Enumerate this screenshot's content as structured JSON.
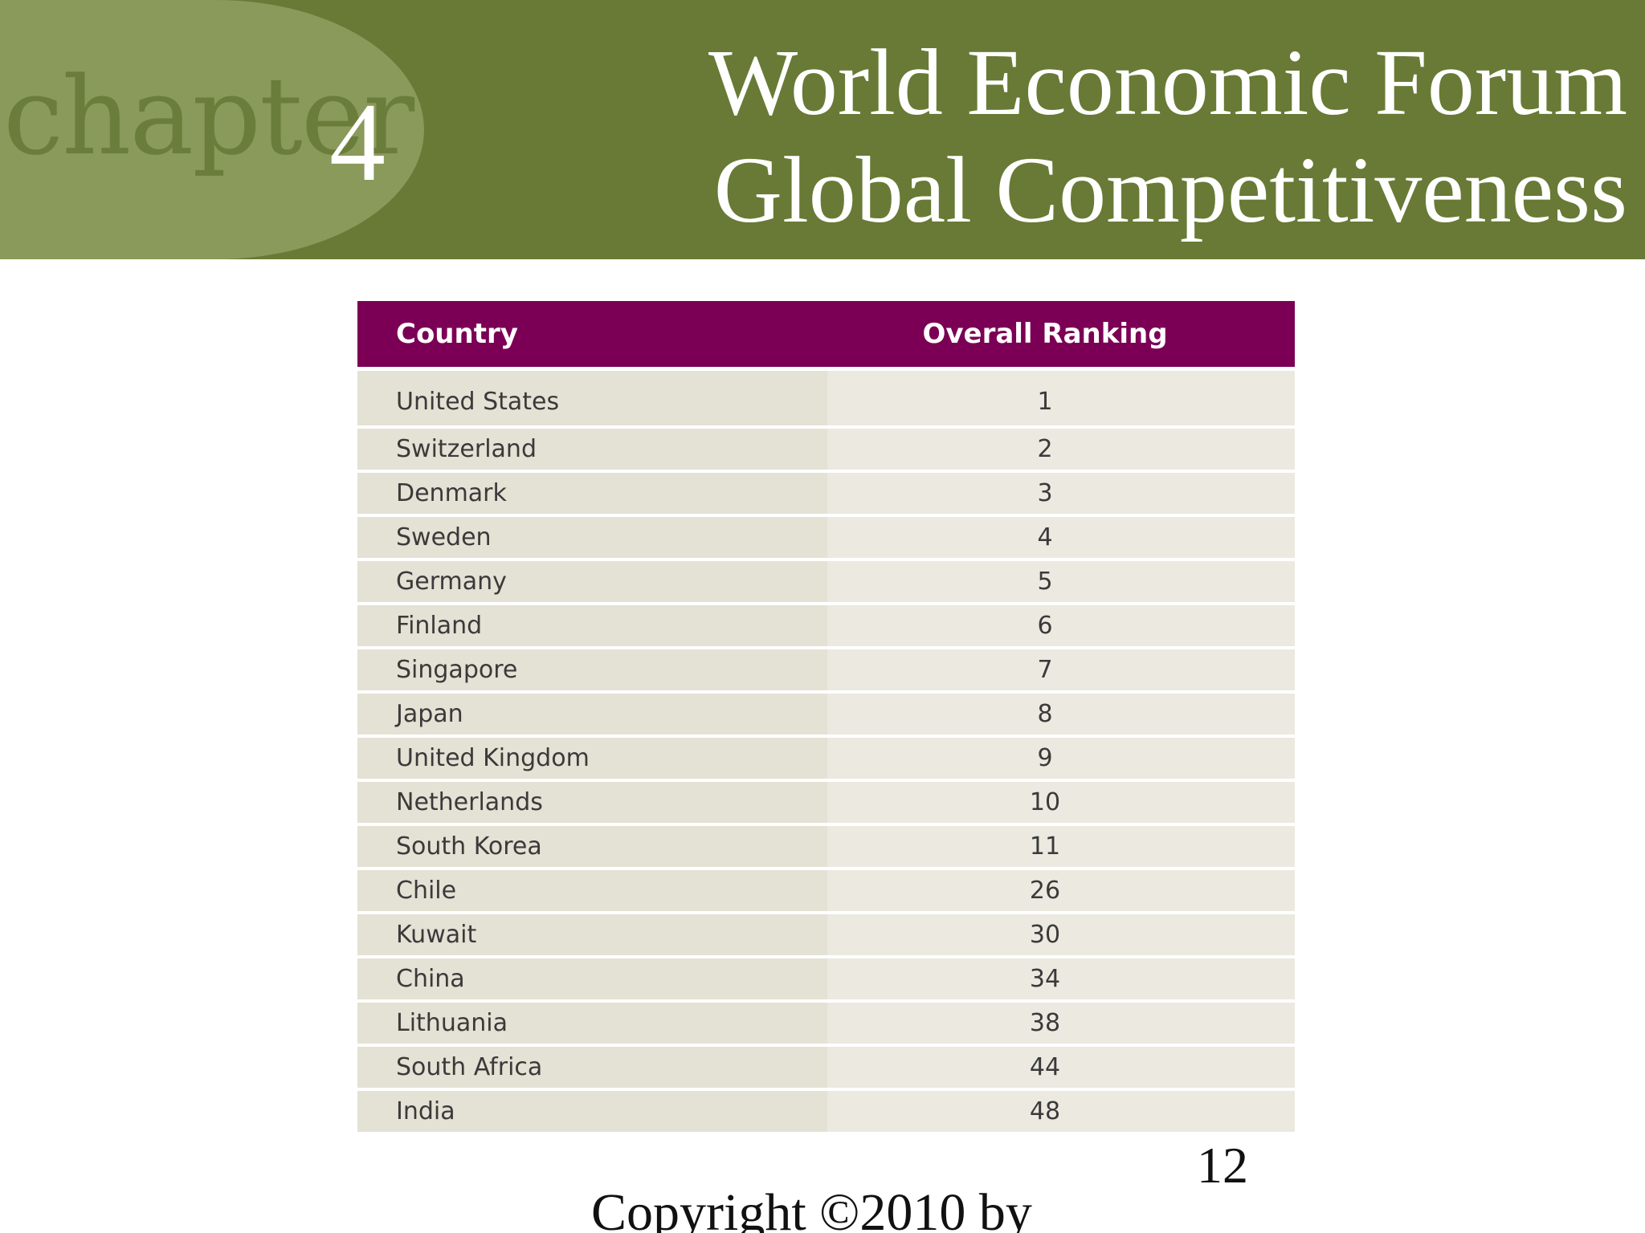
{
  "header": {
    "chapter_word": "chapter",
    "chapter_number": "4",
    "title_line1": "World Economic Forum",
    "title_line2": "Global Competitiveness"
  },
  "colors": {
    "banner": "#687a35",
    "chapter_tab": "#8a9a5a",
    "table_header": "#7b0055"
  },
  "table": {
    "headers": [
      "Country",
      "Overall Ranking"
    ],
    "rows": [
      {
        "country": "United States",
        "rank": "1"
      },
      {
        "country": "Switzerland",
        "rank": "2"
      },
      {
        "country": "Denmark",
        "rank": "3"
      },
      {
        "country": "Sweden",
        "rank": "4"
      },
      {
        "country": "Germany",
        "rank": "5"
      },
      {
        "country": "Finland",
        "rank": "6"
      },
      {
        "country": "Singapore",
        "rank": "7"
      },
      {
        "country": "Japan",
        "rank": "8"
      },
      {
        "country": "United Kingdom",
        "rank": "9"
      },
      {
        "country": "Netherlands",
        "rank": "10"
      },
      {
        "country": "South Korea",
        "rank": "11"
      },
      {
        "country": "Chile",
        "rank": "26"
      },
      {
        "country": "Kuwait",
        "rank": "30"
      },
      {
        "country": "China",
        "rank": "34"
      },
      {
        "country": "Lithuania",
        "rank": "38"
      },
      {
        "country": "South Africa",
        "rank": "44"
      },
      {
        "country": "India",
        "rank": "48"
      }
    ]
  },
  "footer": {
    "page_number": "12",
    "copyright": "Copyright ©2010 by"
  }
}
